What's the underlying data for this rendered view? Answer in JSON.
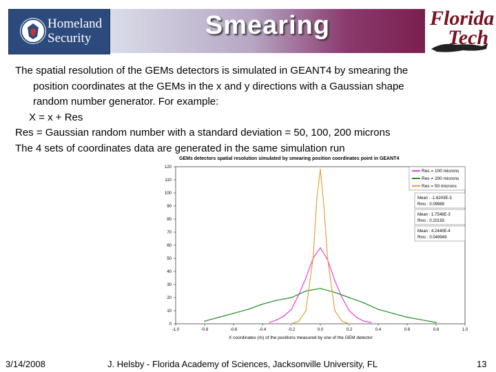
{
  "slide": {
    "title": "Smearing",
    "paragraphs": [
      "The spatial resolution of the GEMs detectors is simulated in GEANT4 by smearing the",
      "position coordinates at the GEMs in the x and y directions with a Gaussian shape",
      "random number generator. For example:",
      "X = x + Res",
      "Res = Gaussian random number with a standard deviation = 50, 100, 200 microns",
      "The 4 sets of coordinates data are generated in the same simulation run"
    ],
    "footer": {
      "date": "3/14/2008",
      "presenter": "J. Helsby - Florida Academy of Sciences, Jacksonville University, FL",
      "page": "13"
    },
    "logos": {
      "left_text": [
        "Homeland",
        "Security"
      ],
      "right_text": [
        "Florida",
        "Tech"
      ]
    }
  },
  "chart_data": {
    "type": "line",
    "title": "GEMs detectors spatial resolution simulated by smearing position coordinates point in GEANT4",
    "xlabel": "X coordinates (m) of the positions measured by one of the GEM detector",
    "ylabel": "",
    "xlim": [
      -1.0,
      1.0
    ],
    "ylim": [
      0,
      120
    ],
    "xticks": [
      "-1.0",
      "-0.8",
      "-0.6",
      "-0.4",
      "-0.2",
      "0.0",
      "0.2",
      "0.4",
      "0.6",
      "0.8",
      "1.0"
    ],
    "yticks": [
      "0",
      "10",
      "20",
      "30",
      "40",
      "50",
      "60",
      "70",
      "80",
      "90",
      "100",
      "110",
      "120"
    ],
    "legend": {
      "placement": "top-right",
      "entries": [
        "Res = 100 microns",
        "Res = 200 microns",
        "Res = 50 microns"
      ]
    },
    "stats": [
      {
        "mean": "Mean : -1.6243E-3",
        "rms": "Rms :   0.09989"
      },
      {
        "mean": "Mean :  1.7546E-3",
        "rms": "Rms :     0.20193"
      },
      {
        "mean": "Mean :  4.2440E-4",
        "rms": "Rms :   0.049949"
      }
    ],
    "series": [
      {
        "name": "Res = 100 microns",
        "color": "#e040e0",
        "x": [
          -0.35,
          -0.3,
          -0.25,
          -0.2,
          -0.15,
          -0.1,
          -0.05,
          0.0,
          0.05,
          0.1,
          0.15,
          0.2,
          0.25,
          0.3,
          0.35
        ],
        "y": [
          1,
          3,
          6,
          11,
          22,
          35,
          50,
          58,
          49,
          33,
          20,
          10,
          5,
          2,
          1
        ]
      },
      {
        "name": "Res = 200 microns",
        "color": "#228b22",
        "x": [
          -0.8,
          -0.7,
          -0.6,
          -0.5,
          -0.4,
          -0.3,
          -0.2,
          -0.1,
          0.0,
          0.1,
          0.2,
          0.3,
          0.4,
          0.5,
          0.6,
          0.7,
          0.8
        ],
        "y": [
          2,
          5,
          8,
          11,
          15,
          18,
          20,
          25,
          27,
          24,
          20,
          16,
          11,
          8,
          5,
          3,
          1
        ]
      },
      {
        "name": "Res = 50 microns",
        "color": "#e0a040",
        "x": [
          -0.2,
          -0.15,
          -0.1,
          -0.05,
          -0.025,
          0.0,
          0.025,
          0.05,
          0.1,
          0.15,
          0.2
        ],
        "y": [
          0,
          2,
          10,
          50,
          95,
          118,
          90,
          50,
          10,
          2,
          0
        ]
      }
    ]
  }
}
